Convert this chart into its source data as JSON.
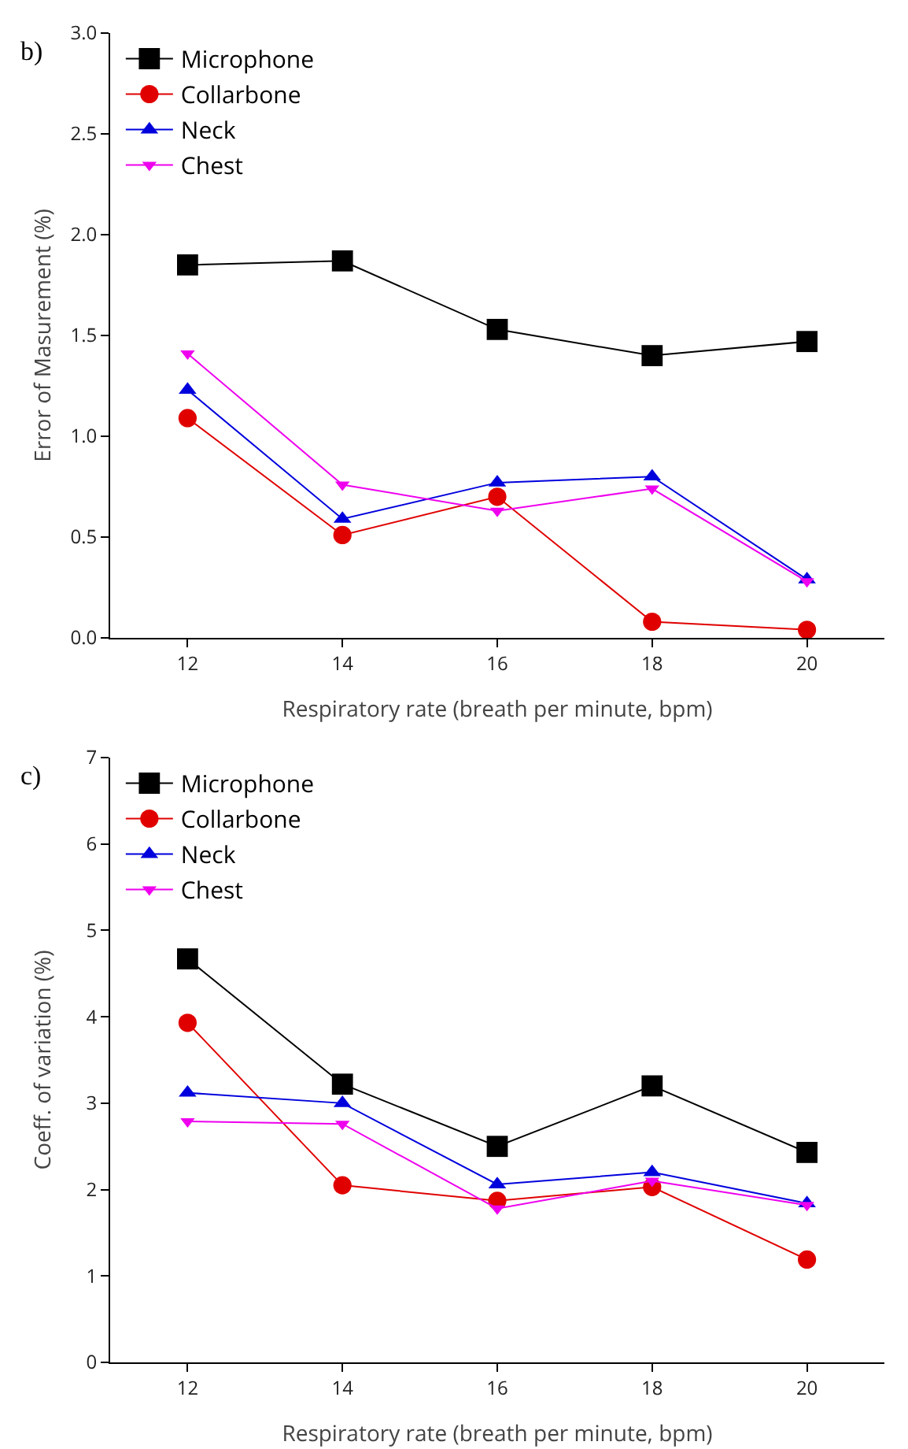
{
  "chart_data": [
    {
      "type": "line",
      "title": "b)",
      "xlabel": "Respiratory rate (breath per minute, bpm)",
      "ylabel": "Error of Masurement (%)",
      "x": [
        12,
        14,
        16,
        18,
        20
      ],
      "xlim": [
        11,
        21
      ],
      "xticks": [
        12,
        14,
        16,
        18,
        20
      ],
      "ylim": [
        0,
        3
      ],
      "yticks": [
        {
          "value": 0,
          "label": "0.0"
        },
        {
          "value": 0.5,
          "label": "0.5"
        },
        {
          "value": 1,
          "label": "1.0"
        },
        {
          "value": 1.5,
          "label": "1.5"
        },
        {
          "value": 2,
          "label": "2.0"
        },
        {
          "value": 2.5,
          "label": "2.5"
        },
        {
          "value": 3,
          "label": "3.0"
        }
      ],
      "grid": false,
      "legend": "top left",
      "line_style": "solid",
      "series": [
        {
          "name": "Microphone",
          "color": "#000000",
          "marker": "square",
          "values": [
            1.85,
            1.87,
            1.53,
            1.4,
            1.47
          ]
        },
        {
          "name": "Collarbone",
          "color": "#e00000",
          "marker": "circle",
          "values": [
            1.09,
            0.51,
            0.7,
            0.08,
            0.04
          ]
        },
        {
          "name": "Neck",
          "color": "#0000dd",
          "marker": "triangle",
          "values": [
            1.23,
            0.59,
            0.77,
            0.8,
            0.29
          ]
        },
        {
          "name": "Chest",
          "color": "#ee00ee",
          "marker": "triangle-down",
          "values": [
            1.41,
            0.76,
            0.63,
            0.74,
            0.28
          ]
        }
      ]
    },
    {
      "type": "line",
      "title": "c)",
      "xlabel": "Respiratory rate (breath per minute, bpm)",
      "ylabel": "Coeff. of variation (%)",
      "x": [
        12,
        14,
        16,
        18,
        20
      ],
      "xlim": [
        11,
        21
      ],
      "xticks": [
        12,
        14,
        16,
        18,
        20
      ],
      "ylim": [
        0,
        7
      ],
      "yticks": [
        0,
        1,
        2,
        3,
        4,
        5,
        6,
        7
      ],
      "grid": false,
      "legend": "top left",
      "line_style": "solid",
      "series": [
        {
          "name": "Microphone",
          "color": "#000000",
          "marker": "square",
          "values": [
            4.67,
            3.22,
            2.5,
            3.2,
            2.43
          ]
        },
        {
          "name": "Collarbone",
          "color": "#e00000",
          "marker": "circle",
          "values": [
            3.93,
            2.05,
            1.87,
            2.03,
            1.19
          ]
        },
        {
          "name": "Neck",
          "color": "#0000dd",
          "marker": "triangle",
          "values": [
            3.12,
            3.0,
            2.06,
            2.2,
            1.84
          ]
        },
        {
          "name": "Chest",
          "color": "#ee00ee",
          "marker": "triangle-down",
          "values": [
            2.79,
            2.76,
            1.78,
            2.1,
            1.82
          ]
        }
      ]
    }
  ]
}
